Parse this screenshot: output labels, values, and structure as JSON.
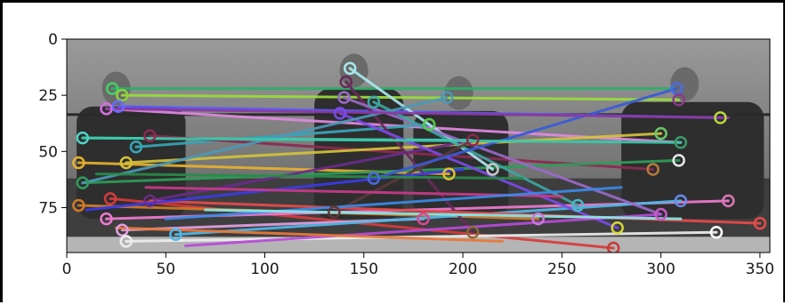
{
  "chart_data": {
    "type": "scatter",
    "title": "",
    "xlabel": "",
    "ylabel": "",
    "xlim": [
      0,
      355
    ],
    "ylim": [
      95,
      0
    ],
    "x_ticks": [
      0,
      50,
      100,
      150,
      200,
      250,
      300,
      350
    ],
    "y_ticks": [
      0,
      25,
      50,
      75
    ],
    "grid": false,
    "image": {
      "description_keypoints": "grayscale image with feature-match lines overlay",
      "bounds": {
        "x": [
          0,
          355
        ],
        "y": [
          0,
          95
        ]
      }
    },
    "keypoints": [
      {
        "x": 23,
        "y": 22,
        "color": "#44d066"
      },
      {
        "x": 28,
        "y": 25,
        "color": "#8dd13c"
      },
      {
        "x": 20,
        "y": 31,
        "color": "#d26fe0"
      },
      {
        "x": 26,
        "y": 30,
        "color": "#6a6aff"
      },
      {
        "x": 8,
        "y": 44,
        "color": "#4fd4c4"
      },
      {
        "x": 35,
        "y": 48,
        "color": "#36a6b8"
      },
      {
        "x": 42,
        "y": 43,
        "color": "#8b2a52"
      },
      {
        "x": 6,
        "y": 55,
        "color": "#e6b030"
      },
      {
        "x": 30,
        "y": 55,
        "color": "#d4c23a"
      },
      {
        "x": 8,
        "y": 64,
        "color": "#2f9c5a"
      },
      {
        "x": 22,
        "y": 71,
        "color": "#d63b3b"
      },
      {
        "x": 42,
        "y": 72,
        "color": "#6b2b8c"
      },
      {
        "x": 6,
        "y": 74,
        "color": "#d07a2a"
      },
      {
        "x": 20,
        "y": 80,
        "color": "#ee7ad0"
      },
      {
        "x": 28,
        "y": 85,
        "color": "#e0a0e0"
      },
      {
        "x": 55,
        "y": 87,
        "color": "#4fb8e8"
      },
      {
        "x": 30,
        "y": 90,
        "color": "#eeeeee"
      },
      {
        "x": 143,
        "y": 13,
        "color": "#a8e8ee"
      },
      {
        "x": 141,
        "y": 19,
        "color": "#6a2a5a"
      },
      {
        "x": 140,
        "y": 26,
        "color": "#9a6ac8"
      },
      {
        "x": 155,
        "y": 28,
        "color": "#3aa8a0"
      },
      {
        "x": 138,
        "y": 33,
        "color": "#7a4ae8"
      },
      {
        "x": 192,
        "y": 26,
        "color": "#4a9ab8"
      },
      {
        "x": 183,
        "y": 38,
        "color": "#5ac84a"
      },
      {
        "x": 205,
        "y": 45,
        "color": "#8a2a4a"
      },
      {
        "x": 215,
        "y": 58,
        "color": "#c8c8c8"
      },
      {
        "x": 193,
        "y": 60,
        "color": "#e0c030"
      },
      {
        "x": 135,
        "y": 77,
        "color": "#5a3a3a"
      },
      {
        "x": 155,
        "y": 62,
        "color": "#4a6ad8"
      },
      {
        "x": 180,
        "y": 80,
        "color": "#d84a9a"
      },
      {
        "x": 205,
        "y": 86,
        "color": "#8a6a3a"
      },
      {
        "x": 238,
        "y": 80,
        "color": "#c87ad8"
      },
      {
        "x": 258,
        "y": 74,
        "color": "#4ab8c8"
      },
      {
        "x": 276,
        "y": 93,
        "color": "#c83a3a"
      },
      {
        "x": 278,
        "y": 84,
        "color": "#d8d83a"
      },
      {
        "x": 296,
        "y": 58,
        "color": "#b87a3a"
      },
      {
        "x": 300,
        "y": 42,
        "color": "#6ac86a"
      },
      {
        "x": 308,
        "y": 22,
        "color": "#4a6ae8"
      },
      {
        "x": 309,
        "y": 27,
        "color": "#8a3a8a"
      },
      {
        "x": 310,
        "y": 46,
        "color": "#3a9a6a"
      },
      {
        "x": 309,
        "y": 54,
        "color": "#e8e8e8"
      },
      {
        "x": 330,
        "y": 35,
        "color": "#b8d83a"
      },
      {
        "x": 300,
        "y": 78,
        "color": "#c85ac8"
      },
      {
        "x": 310,
        "y": 72,
        "color": "#6a8ae8"
      },
      {
        "x": 334,
        "y": 72,
        "color": "#d87ab8"
      },
      {
        "x": 328,
        "y": 86,
        "color": "#ffffff"
      },
      {
        "x": 350,
        "y": 82,
        "color": "#e84a4a"
      }
    ],
    "match_lines": [
      {
        "x1": 23,
        "y1": 22,
        "x2": 308,
        "y2": 22,
        "color": "#2eae6a"
      },
      {
        "x1": 28,
        "y1": 25,
        "x2": 309,
        "y2": 27,
        "color": "#9adc3a"
      },
      {
        "x1": 20,
        "y1": 31,
        "x2": 310,
        "y2": 46,
        "color": "#e08ae0"
      },
      {
        "x1": 26,
        "y1": 30,
        "x2": 330,
        "y2": 35,
        "color": "#5a5aff"
      },
      {
        "x1": 8,
        "y1": 44,
        "x2": 205,
        "y2": 45,
        "color": "#4fd4c4"
      },
      {
        "x1": 35,
        "y1": 48,
        "x2": 183,
        "y2": 38,
        "color": "#36a6b8"
      },
      {
        "x1": 42,
        "y1": 43,
        "x2": 296,
        "y2": 58,
        "color": "#8b2a52"
      },
      {
        "x1": 6,
        "y1": 55,
        "x2": 193,
        "y2": 60,
        "color": "#e6b030"
      },
      {
        "x1": 30,
        "y1": 55,
        "x2": 300,
        "y2": 42,
        "color": "#d4c23a"
      },
      {
        "x1": 8,
        "y1": 64,
        "x2": 309,
        "y2": 54,
        "color": "#2f9c5a"
      },
      {
        "x1": 22,
        "y1": 71,
        "x2": 276,
        "y2": 93,
        "color": "#d63b3b"
      },
      {
        "x1": 42,
        "y1": 72,
        "x2": 205,
        "y2": 45,
        "color": "#6b2b8c"
      },
      {
        "x1": 6,
        "y1": 74,
        "x2": 238,
        "y2": 80,
        "color": "#d07a2a"
      },
      {
        "x1": 20,
        "y1": 80,
        "x2": 334,
        "y2": 72,
        "color": "#ee7ad0"
      },
      {
        "x1": 28,
        "y1": 85,
        "x2": 180,
        "y2": 80,
        "color": "#e0a0e0"
      },
      {
        "x1": 55,
        "y1": 87,
        "x2": 310,
        "y2": 72,
        "color": "#4fb8e8"
      },
      {
        "x1": 30,
        "y1": 90,
        "x2": 328,
        "y2": 86,
        "color": "#eeeeee"
      },
      {
        "x1": 143,
        "y1": 13,
        "x2": 215,
        "y2": 58,
        "color": "#a8e8ee"
      },
      {
        "x1": 141,
        "y1": 19,
        "x2": 205,
        "y2": 86,
        "color": "#6a2a5a"
      },
      {
        "x1": 140,
        "y1": 26,
        "x2": 300,
        "y2": 78,
        "color": "#9a6ac8"
      },
      {
        "x1": 155,
        "y1": 28,
        "x2": 258,
        "y2": 74,
        "color": "#3aa8a0"
      },
      {
        "x1": 138,
        "y1": 33,
        "x2": 278,
        "y2": 84,
        "color": "#7a4ae8"
      },
      {
        "x1": 192,
        "y1": 26,
        "x2": 8,
        "y2": 64,
        "color": "#4a9ab8"
      },
      {
        "x1": 135,
        "y1": 77,
        "x2": 205,
        "y2": 45,
        "color": "#5a3a3a"
      },
      {
        "x1": 155,
        "y1": 62,
        "x2": 308,
        "y2": 22,
        "color": "#3a5ad8"
      },
      {
        "x1": 42,
        "y1": 72,
        "x2": 350,
        "y2": 82,
        "color": "#e84a4a"
      },
      {
        "x1": 20,
        "y1": 31,
        "x2": 334,
        "y2": 35,
        "color": "#8a3aa0"
      },
      {
        "x1": 8,
        "y1": 44,
        "x2": 310,
        "y2": 46,
        "color": "#3ac8a8"
      },
      {
        "x1": 60,
        "y1": 92,
        "x2": 300,
        "y2": 78,
        "color": "#b84ad8"
      },
      {
        "x1": 10,
        "y1": 76,
        "x2": 200,
        "y2": 58,
        "color": "#3a3ae8"
      },
      {
        "x1": 15,
        "y1": 60,
        "x2": 230,
        "y2": 62,
        "color": "#2a8a4a"
      },
      {
        "x1": 40,
        "y1": 66,
        "x2": 250,
        "y2": 70,
        "color": "#c83a8a"
      },
      {
        "x1": 50,
        "y1": 80,
        "x2": 280,
        "y2": 66,
        "color": "#3a8ae8"
      },
      {
        "x1": 25,
        "y1": 84,
        "x2": 220,
        "y2": 90,
        "color": "#e87a3a"
      },
      {
        "x1": 70,
        "y1": 76,
        "x2": 310,
        "y2": 80,
        "color": "#8ae8e8"
      }
    ]
  },
  "colors": {
    "image_dark": "#3a3a3a",
    "image_mid": "#8a8a8a",
    "image_light": "#b8b8b8",
    "axes": "#000000"
  }
}
